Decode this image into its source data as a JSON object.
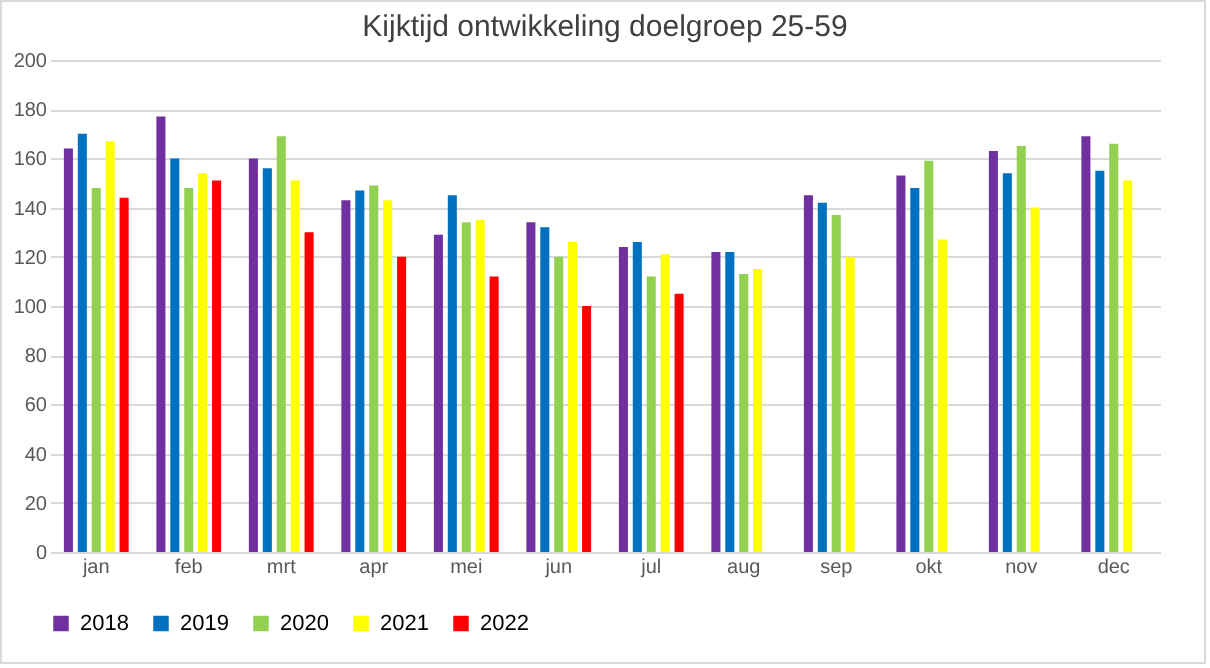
{
  "chart_data": {
    "type": "bar",
    "title": "Kijktijd ontwikkeling doelgroep 25-59",
    "categories": [
      "jan",
      "feb",
      "mrt",
      "apr",
      "mei",
      "jun",
      "jul",
      "aug",
      "sep",
      "okt",
      "nov",
      "dec"
    ],
    "series": [
      {
        "name": "2018",
        "color": "#7030a0",
        "values": [
          164,
          177,
          160,
          143,
          129,
          134,
          124,
          122,
          145,
          153,
          163,
          169
        ]
      },
      {
        "name": "2019",
        "color": "#0070c0",
        "values": [
          170,
          160,
          156,
          147,
          145,
          132,
          126,
          122,
          142,
          148,
          154,
          155
        ]
      },
      {
        "name": "2020",
        "color": "#92d050",
        "values": [
          148,
          148,
          169,
          149,
          134,
          120,
          112,
          113,
          137,
          159,
          165,
          166
        ]
      },
      {
        "name": "2021",
        "color": "#ffff00",
        "values": [
          167,
          154,
          151,
          143,
          135,
          126,
          121,
          115,
          120,
          127,
          140,
          151
        ]
      },
      {
        "name": "2022",
        "color": "#ff0000",
        "values": [
          144,
          151,
          130,
          120,
          112,
          100,
          105,
          null,
          null,
          null,
          null,
          null
        ]
      }
    ],
    "ylim": [
      0,
      200
    ],
    "yticks": [
      0,
      20,
      40,
      60,
      80,
      100,
      120,
      140,
      160,
      180,
      200
    ],
    "grid": "y",
    "legend": "bottom"
  }
}
